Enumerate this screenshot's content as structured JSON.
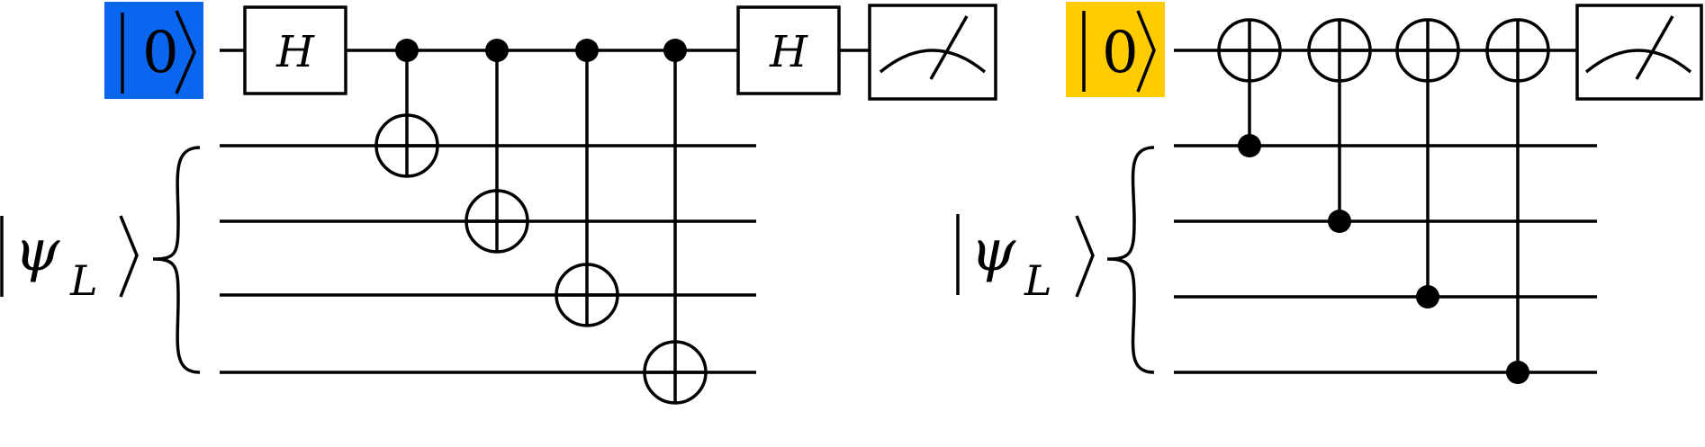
{
  "circuits": [
    {
      "id": "left-circuit",
      "ancilla": {
        "ket": "0",
        "highlight": "#0a66ee"
      },
      "register": {
        "symbol": "ψ",
        "subscript": "L"
      },
      "gates": {
        "first": "H",
        "second": "H"
      },
      "ancilla_role": "control",
      "data_qubits": 4,
      "measurement": "meter"
    },
    {
      "id": "right-circuit",
      "ancilla": {
        "ket": "0",
        "highlight": "#ffcc00"
      },
      "register": {
        "symbol": "ψ",
        "subscript": "L"
      },
      "ancilla_role": "target",
      "data_qubits": 4,
      "measurement": "meter"
    }
  ]
}
